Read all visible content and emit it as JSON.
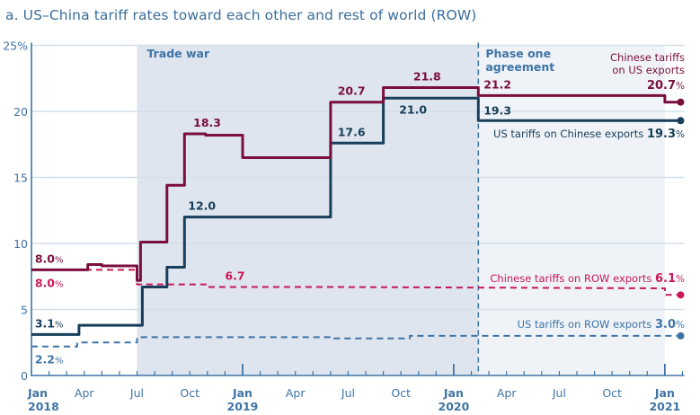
{
  "title": "a. US–China tariff rates toward each other and rest of world (ROW)",
  "chart_data": {
    "type": "line",
    "title": "a. US–China tariff rates toward each other and rest of world (ROW)",
    "xlabel": "",
    "ylabel": "",
    "x_unit": "months since Jan 2018",
    "xlim": [
      0,
      37
    ],
    "ylim": [
      0,
      25
    ],
    "grid": true,
    "y_ticks": [
      {
        "value": 0,
        "label": "0"
      },
      {
        "value": 5,
        "label": "5"
      },
      {
        "value": 10,
        "label": "10"
      },
      {
        "value": 15,
        "label": "15"
      },
      {
        "value": 20,
        "label": "20"
      },
      {
        "value": 25,
        "label": "25%"
      }
    ],
    "x_ticks": [
      {
        "value": 0,
        "label": "Jan",
        "year": "2018"
      },
      {
        "value": 3,
        "label": "Apr",
        "year": ""
      },
      {
        "value": 6,
        "label": "Jul",
        "year": ""
      },
      {
        "value": 9,
        "label": "Oct",
        "year": ""
      },
      {
        "value": 12,
        "label": "Jan",
        "year": "2019"
      },
      {
        "value": 15,
        "label": "Apr",
        "year": ""
      },
      {
        "value": 18,
        "label": "Jul",
        "year": ""
      },
      {
        "value": 21,
        "label": "Oct",
        "year": ""
      },
      {
        "value": 24,
        "label": "Jan",
        "year": "2020"
      },
      {
        "value": 27,
        "label": "Apr",
        "year": ""
      },
      {
        "value": 30,
        "label": "Jul",
        "year": ""
      },
      {
        "value": 33,
        "label": "Oct",
        "year": ""
      },
      {
        "value": 36,
        "label": "Jan",
        "year": "2021"
      }
    ],
    "periods": [
      {
        "name": "trade-war",
        "label": "Trade war",
        "start": 6,
        "end": 25.4
      },
      {
        "name": "phase-one",
        "label": [
          "Phase one",
          "agreement"
        ],
        "start": 25.4,
        "end": 36
      }
    ],
    "series": [
      {
        "name": "chinese-tariffs-on-us",
        "label": [
          "Chinese tariffs",
          "on US exports"
        ],
        "end_value": "20.7%",
        "color": "#7a0e3e",
        "style": "solid",
        "points": [
          [
            0,
            8.0
          ],
          [
            3.2,
            8.0
          ],
          [
            3.2,
            8.4
          ],
          [
            4.0,
            8.4
          ],
          [
            4.0,
            8.3
          ],
          [
            6.0,
            8.3
          ],
          [
            6.0,
            7.2
          ],
          [
            6.2,
            7.2
          ],
          [
            6.2,
            10.1
          ],
          [
            7.7,
            10.1
          ],
          [
            7.7,
            14.4
          ],
          [
            8.7,
            14.4
          ],
          [
            8.7,
            18.3
          ],
          [
            9.9,
            18.3
          ],
          [
            9.9,
            18.2
          ],
          [
            12.0,
            18.2
          ],
          [
            12.0,
            16.5
          ],
          [
            17.0,
            16.5
          ],
          [
            17.0,
            20.7
          ],
          [
            20.0,
            20.7
          ],
          [
            20.0,
            21.8
          ],
          [
            25.4,
            21.8
          ],
          [
            25.4,
            21.2
          ],
          [
            36.0,
            21.2
          ],
          [
            36.0,
            20.7
          ],
          [
            37,
            20.7
          ]
        ],
        "labels": [
          {
            "x": 0.3,
            "y": 8.0,
            "text": "8.0%"
          },
          {
            "x": 9.2,
            "y": 18.3,
            "text": "18.3"
          },
          {
            "x": 17.4,
            "y": 20.7,
            "text": "20.7"
          },
          {
            "x": 21.7,
            "y": 21.8,
            "text": "21.8"
          },
          {
            "x": 25.7,
            "y": 21.2,
            "text": "21.2"
          }
        ]
      },
      {
        "name": "us-tariffs-on-chinese",
        "label": "US tariffs on Chinese exports",
        "end_value": "19.3%",
        "color": "#173e5a",
        "style": "solid",
        "points": [
          [
            0,
            3.1
          ],
          [
            2.7,
            3.1
          ],
          [
            2.7,
            3.8
          ],
          [
            6.3,
            3.8
          ],
          [
            6.3,
            6.7
          ],
          [
            7.7,
            6.7
          ],
          [
            7.7,
            8.2
          ],
          [
            8.7,
            8.2
          ],
          [
            8.7,
            12.0
          ],
          [
            17.0,
            12.0
          ],
          [
            17.0,
            17.6
          ],
          [
            20.0,
            17.6
          ],
          [
            20.0,
            21.0
          ],
          [
            25.4,
            21.0
          ],
          [
            25.4,
            19.3
          ],
          [
            37,
            19.3
          ]
        ],
        "labels": [
          {
            "x": 0.3,
            "y": 3.1,
            "text": "3.1%"
          },
          {
            "x": 8.9,
            "y": 12.0,
            "text": "12.0"
          },
          {
            "x": 17.4,
            "y": 17.6,
            "text": "17.6"
          },
          {
            "x": 20.9,
            "y": 21.0,
            "text": "21.0"
          },
          {
            "x": 25.7,
            "y": 19.3,
            "text": "19.3"
          }
        ]
      },
      {
        "name": "chinese-tariffs-on-row",
        "label": "Chinese tariffs on ROW exports",
        "end_value": "6.1%",
        "color": "#c8185a",
        "style": "dashed",
        "points": [
          [
            0,
            8.0
          ],
          [
            6.0,
            8.0
          ],
          [
            6.0,
            6.9
          ],
          [
            10.0,
            6.9
          ],
          [
            10.0,
            6.7
          ],
          [
            17.0,
            6.7
          ],
          [
            17.0,
            6.7
          ],
          [
            36.0,
            6.6
          ],
          [
            36.0,
            6.1
          ],
          [
            37,
            6.1
          ]
        ],
        "labels": [
          {
            "x": 0.3,
            "y": 8.0,
            "text": "8.0%"
          },
          {
            "x": 11.0,
            "y": 6.7,
            "text": "6.7"
          }
        ]
      },
      {
        "name": "us-tariffs-on-row",
        "label": "US tariffs on ROW exports",
        "end_value": "3.0%",
        "color": "#3f74a6",
        "style": "dashed",
        "points": [
          [
            0,
            2.2
          ],
          [
            2.6,
            2.2
          ],
          [
            2.6,
            2.5
          ],
          [
            6.0,
            2.5
          ],
          [
            6.0,
            2.9
          ],
          [
            17.0,
            2.9
          ],
          [
            17.0,
            2.8
          ],
          [
            21.5,
            2.8
          ],
          [
            21.5,
            3.0
          ],
          [
            37,
            3.0
          ]
        ],
        "labels": [
          {
            "x": 0.3,
            "y": 2.2,
            "text": "2.2%"
          }
        ]
      }
    ]
  }
}
